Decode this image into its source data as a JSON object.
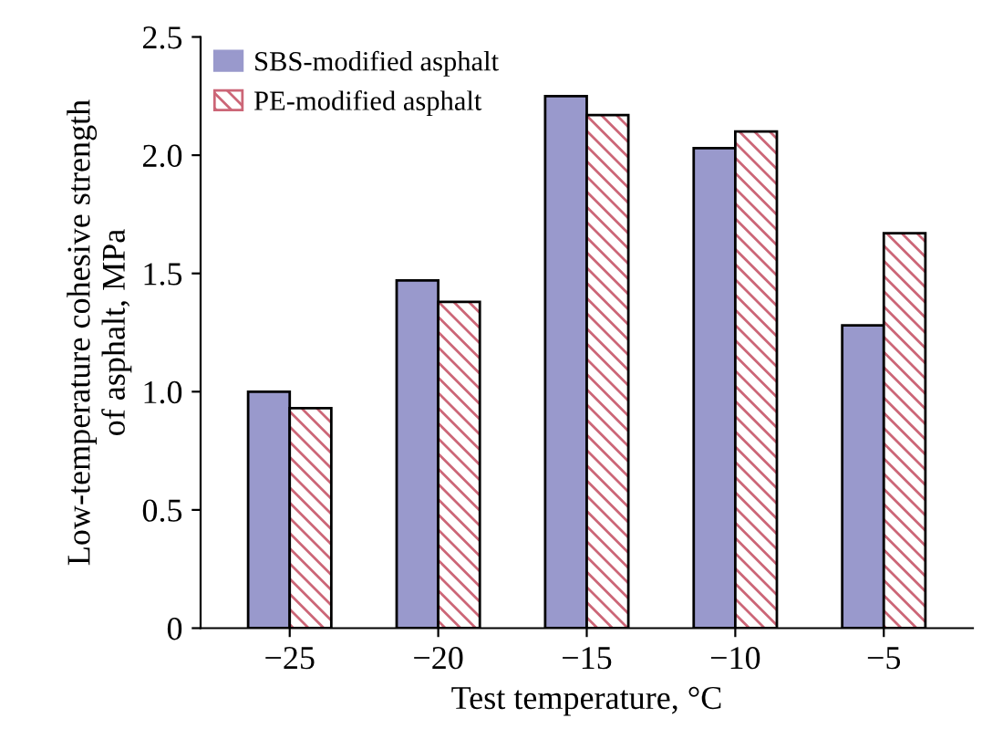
{
  "chart_data": {
    "type": "bar",
    "xlabel": "Test temperature, °C",
    "ylabel": "Low-temperature cohesive strength\nof asphalt, MPa",
    "categories": [
      "−25",
      "−20",
      "−15",
      "−10",
      "−5"
    ],
    "series": [
      {
        "name": "SBS-modified asphalt",
        "color": "#9999cc",
        "values": [
          1.0,
          1.47,
          2.25,
          2.03,
          1.28
        ]
      },
      {
        "name": "PE-modified asphalt",
        "color": "#cc6677",
        "values": [
          0.93,
          1.38,
          2.17,
          2.1,
          1.67
        ]
      }
    ],
    "ylim": [
      0,
      2.5
    ],
    "yticks": [
      0,
      0.5,
      {
        "value": 1,
        "label": "1.0"
      },
      1.5,
      {
        "value": 2,
        "label": "2.0"
      },
      2.5
    ],
    "legend": "top left",
    "grid": false
  }
}
